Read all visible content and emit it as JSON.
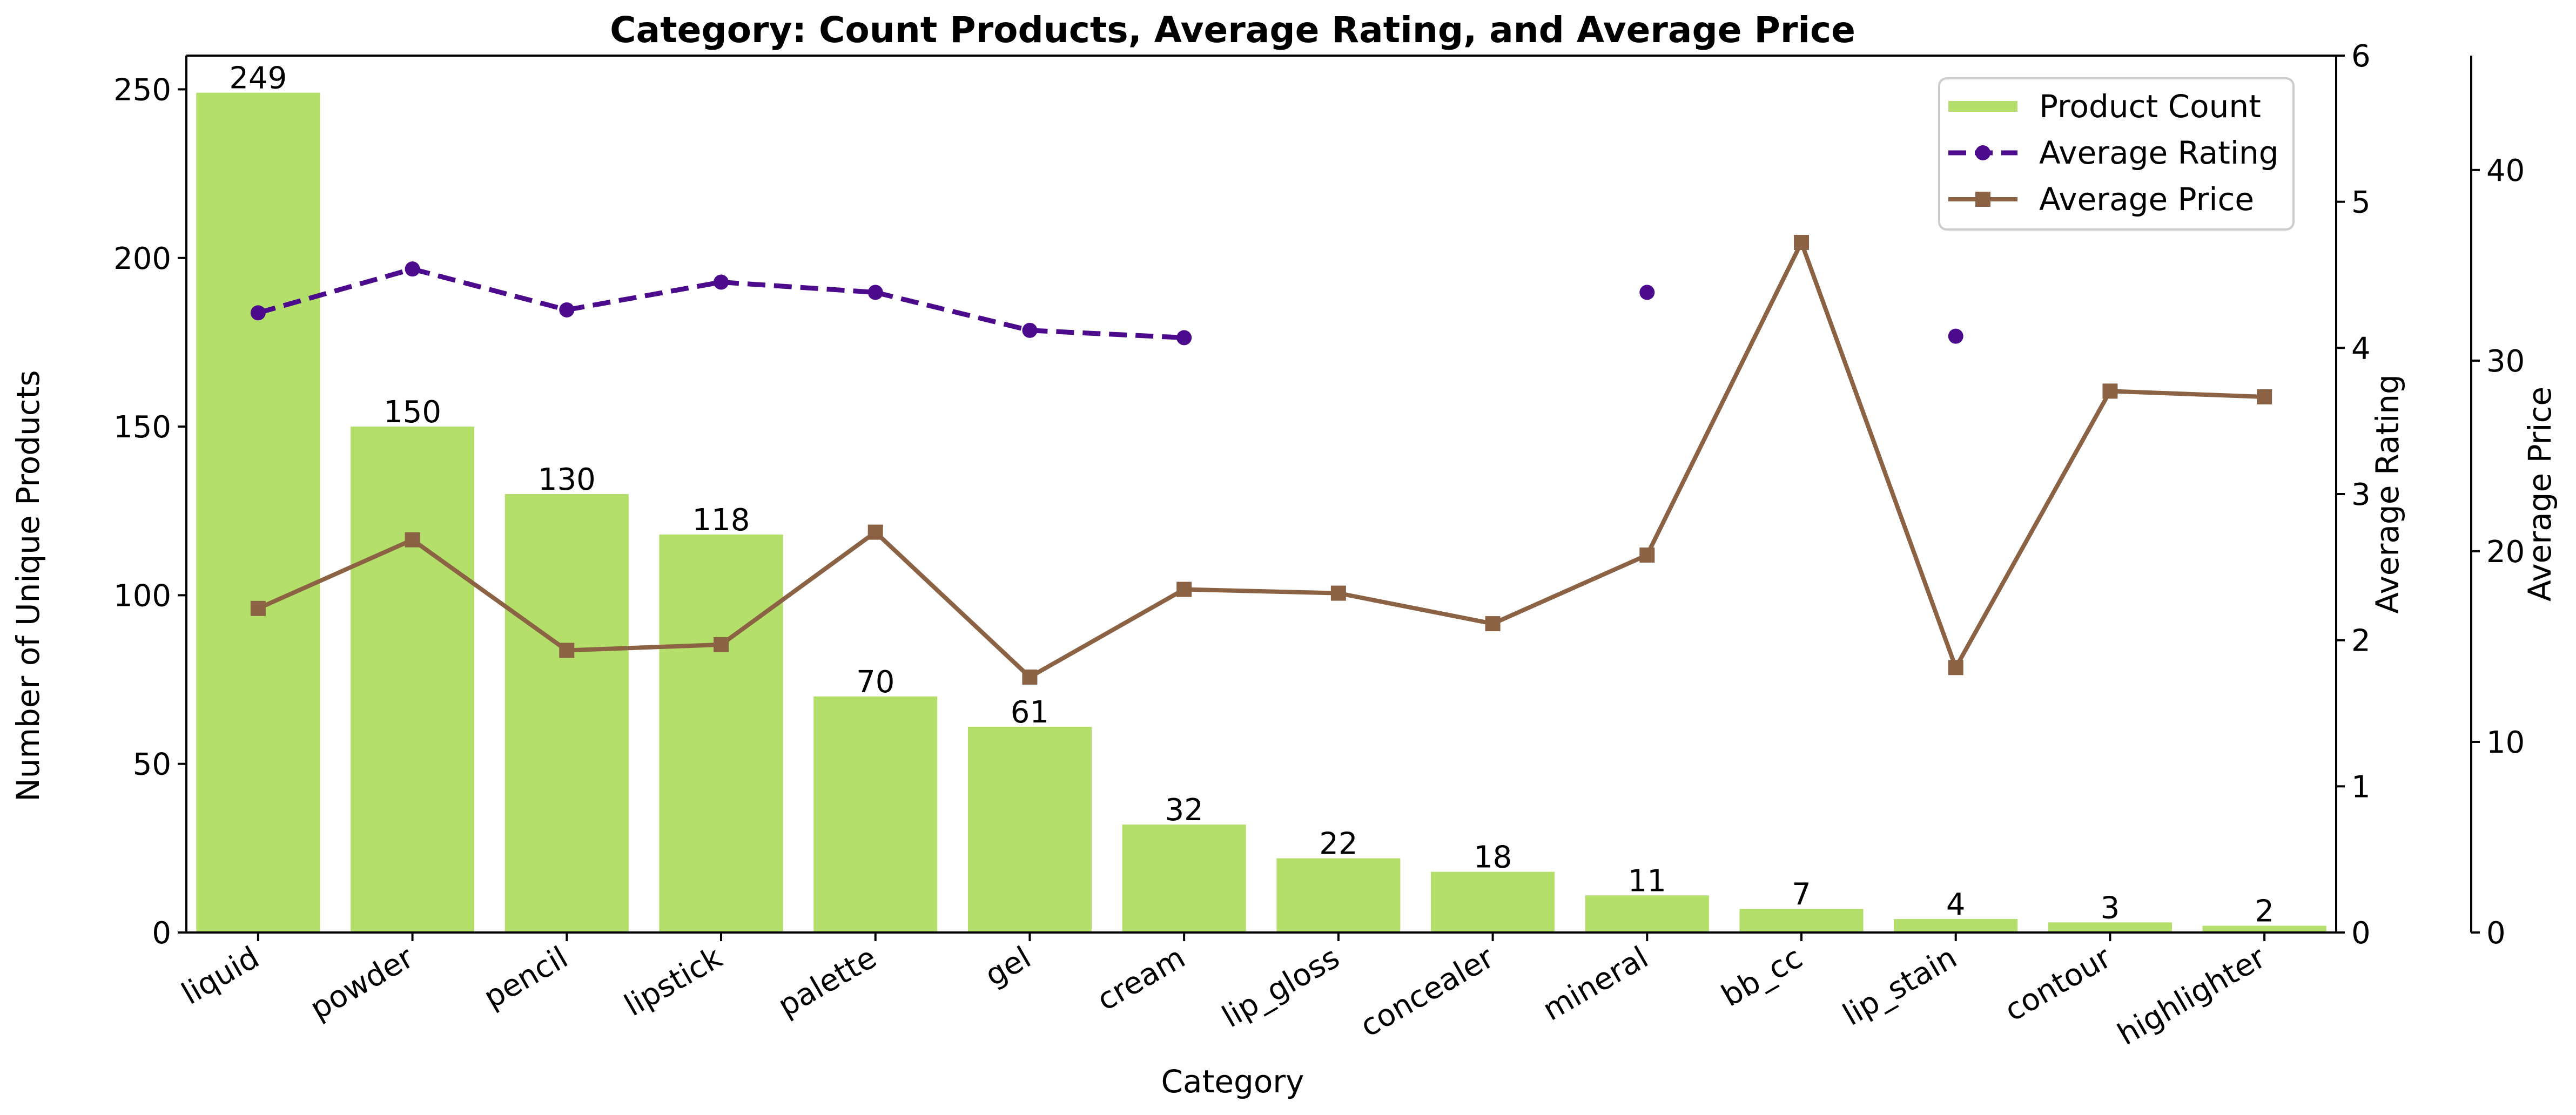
{
  "chart_data": {
    "type": "bar",
    "title": "Category: Count Products, Average Rating, and Average Price",
    "xlabel": "Category",
    "ylabel": "Number of Unique Products",
    "y2label": "Average Rating",
    "y3label": "Average Price",
    "categories": [
      "liquid",
      "powder",
      "pencil",
      "lipstick",
      "palette",
      "gel",
      "cream",
      "lip_gloss",
      "concealer",
      "mineral",
      "bb_cc",
      "lip_stain",
      "contour",
      "highlighter"
    ],
    "ylim": [
      0,
      260
    ],
    "y2lim": [
      0,
      6
    ],
    "y3lim": [
      0,
      46
    ],
    "yticks": [
      0,
      50,
      100,
      150,
      200,
      250
    ],
    "y2ticks": [
      0,
      1,
      2,
      3,
      4,
      5,
      6
    ],
    "y3ticks": [
      0,
      10,
      20,
      30,
      40
    ],
    "grid": false,
    "legend_position": "upper right",
    "series": [
      {
        "name": "Product Count",
        "kind": "bar",
        "axis": "left",
        "color": "#b3df6a",
        "values": [
          249,
          150,
          130,
          118,
          70,
          61,
          32,
          22,
          18,
          11,
          7,
          4,
          3,
          2
        ]
      },
      {
        "name": "Average Rating",
        "kind": "line",
        "axis": "right",
        "color": "#4b0b8c",
        "style": "dashed",
        "marker": "circle",
        "values": [
          4.24,
          4.54,
          4.26,
          4.45,
          4.38,
          4.12,
          4.07,
          null,
          null,
          4.38,
          null,
          4.08,
          null,
          null
        ]
      },
      {
        "name": "Average Price",
        "kind": "line",
        "axis": "third",
        "color": "#8b6344",
        "style": "solid",
        "marker": "square",
        "values": [
          17.0,
          20.6,
          14.8,
          15.1,
          21.0,
          13.4,
          18.0,
          17.8,
          16.2,
          19.8,
          36.2,
          13.9,
          28.4,
          28.1
        ]
      }
    ]
  }
}
